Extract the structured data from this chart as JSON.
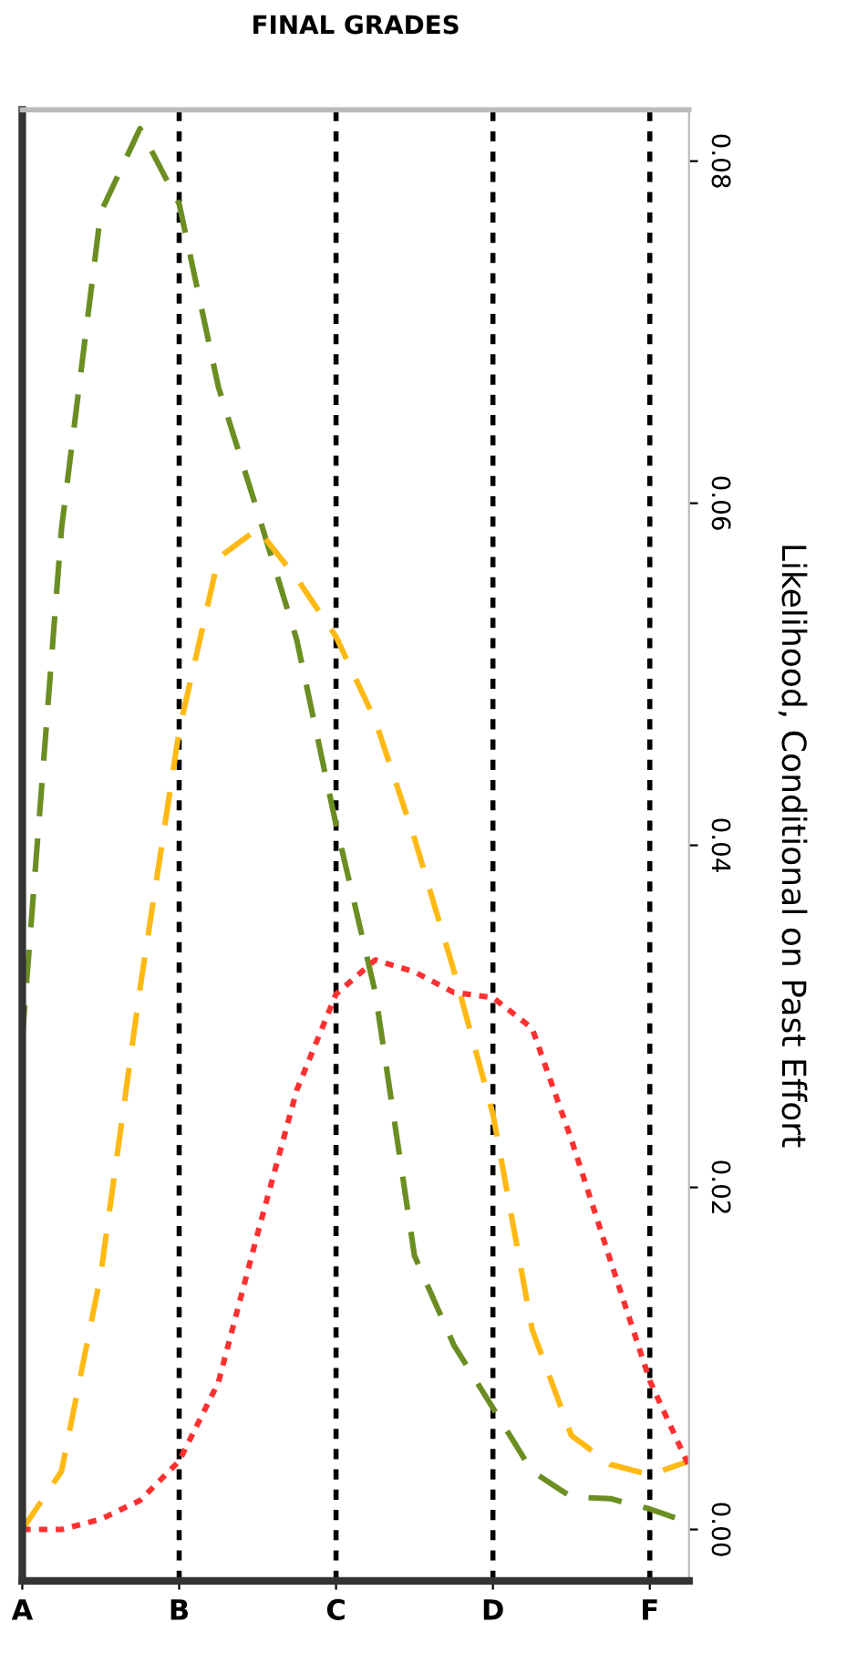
{
  "chart_data": {
    "type": "line",
    "title": "FINAL GRADES",
    "ylabel": "Likelihood, Conditional on Past Effort",
    "categories": [
      "A",
      null,
      null,
      null,
      "B",
      null,
      null,
      null,
      "C",
      null,
      null,
      null,
      "D",
      null,
      null,
      null,
      "F",
      null
    ],
    "ylim": [
      -0.003,
      0.083
    ],
    "yticks": [
      {
        "value": 0,
        "label": "0.00"
      },
      {
        "value": 0.02,
        "label": "0.02"
      },
      {
        "value": 0.04,
        "label": "0.04"
      },
      {
        "value": 0.06,
        "label": "0.06"
      },
      {
        "value": 0.08,
        "label": "0.08"
      }
    ],
    "grid": "x",
    "marker": "none",
    "series": [
      {
        "color": "#6b8e23",
        "line_style": "dashed",
        "values": [
          0.0287,
          0.0585,
          0.077,
          0.0819,
          0.0775,
          0.0668,
          0.0595,
          0.052,
          0.0412,
          0.0314,
          0.016,
          0.0108,
          0.0071,
          0.0034,
          0.0019,
          0.0018,
          0.0012,
          0.0004
        ]
      },
      {
        "color": "#ffb914",
        "line_style": "dashed",
        "values": [
          0.0,
          0.0034,
          0.0149,
          0.0316,
          0.0467,
          0.0568,
          0.0585,
          0.0556,
          0.0522,
          0.0473,
          0.0404,
          0.0327,
          0.0243,
          0.0117,
          0.0055,
          0.0038,
          0.0032,
          0.004
        ]
      },
      {
        "color": "#ff3030",
        "line_style": "dotted",
        "values": [
          0.0,
          0.0,
          0.0006,
          0.0017,
          0.004,
          0.0086,
          0.0173,
          0.0257,
          0.0313,
          0.0333,
          0.0326,
          0.0314,
          0.0311,
          0.0293,
          0.0228,
          0.0157,
          0.0087,
          0.0037
        ]
      }
    ]
  }
}
